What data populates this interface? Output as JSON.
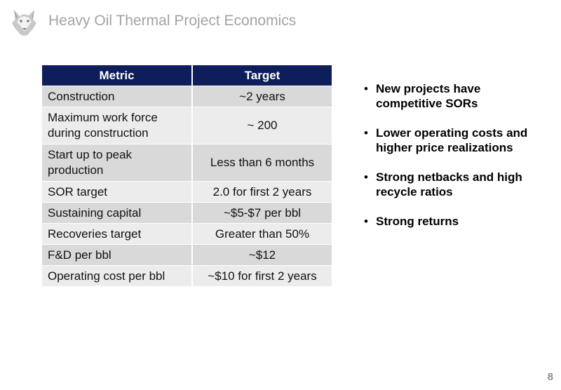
{
  "header": {
    "title": "Heavy Oil Thermal Project Economics",
    "logo_icon": "husky-dog-logo"
  },
  "table": {
    "headers": [
      "Metric",
      "Target"
    ],
    "rows": [
      {
        "metric": "Construction",
        "target": "~2 years"
      },
      {
        "metric": "Maximum work force during construction",
        "target": "~ 200"
      },
      {
        "metric": "Start up to peak production",
        "target": "Less than 6 months"
      },
      {
        "metric": "SOR target",
        "target": "2.0 for first 2 years"
      },
      {
        "metric": "Sustaining capital",
        "target": "~$5-$7 per bbl"
      },
      {
        "metric": "Recoveries target",
        "target": "Greater than 50%"
      },
      {
        "metric": "F&D per bbl",
        "target": "~$12"
      },
      {
        "metric": "Operating cost per bbl",
        "target": "~$10 for first 2 years"
      }
    ]
  },
  "bullets": [
    "New projects have competitive SORs",
    "Lower operating costs and higher price realizations",
    "Strong netbacks and high recycle ratios",
    "Strong returns"
  ],
  "bullet_char": "•",
  "footer": {
    "page_number": "8"
  },
  "colors": {
    "header_bg": "#0d1e5a",
    "row_dark": "#d9d9d9",
    "row_light": "#ececec",
    "title_text": "#a3a3a3"
  }
}
